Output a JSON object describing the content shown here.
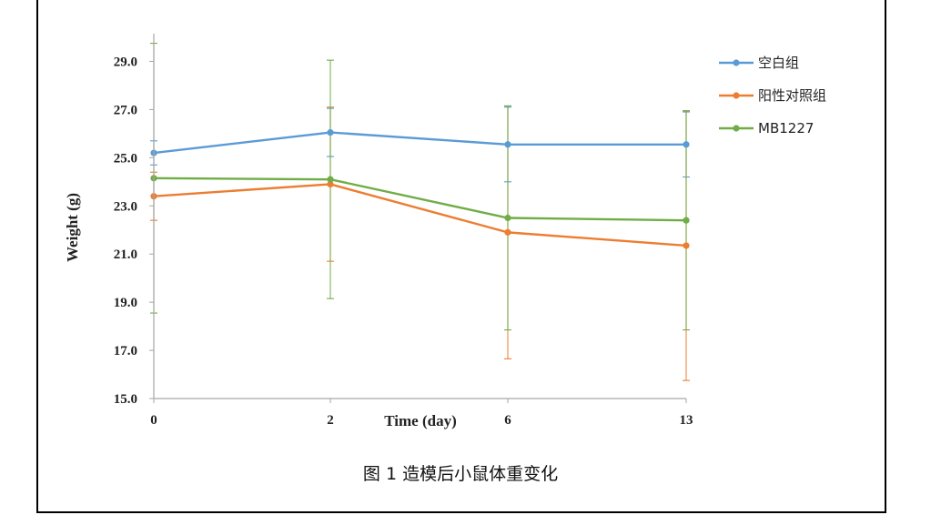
{
  "caption": "图 1  造模后小鼠体重变化",
  "chart_data": {
    "type": "line",
    "title": "",
    "xlabel": "Time (day)",
    "ylabel": "Weight (g)",
    "categories": [
      "0",
      "2",
      "6",
      "13"
    ],
    "ylim": [
      15.0,
      30.0
    ],
    "yticks": [
      "15.0",
      "17.0",
      "19.0",
      "21.0",
      "23.0",
      "25.0",
      "27.0",
      "29.0"
    ],
    "legend_position": "right",
    "grid": false,
    "series": [
      {
        "name": "空白组",
        "color": "#5b9bd5",
        "values": [
          25.2,
          26.05,
          25.55,
          25.55
        ],
        "error": [
          0.5,
          1.0,
          1.55,
          1.35
        ]
      },
      {
        "name": "阳性对照组",
        "color": "#ed7d31",
        "values": [
          23.4,
          23.9,
          21.9,
          21.35
        ],
        "error": [
          1.0,
          3.2,
          5.25,
          5.6
        ]
      },
      {
        "name": "MB1227",
        "color": "#70ad47",
        "values": [
          24.15,
          24.1,
          22.5,
          22.4
        ],
        "error": [
          5.6,
          4.95,
          4.65,
          4.55
        ]
      }
    ]
  }
}
